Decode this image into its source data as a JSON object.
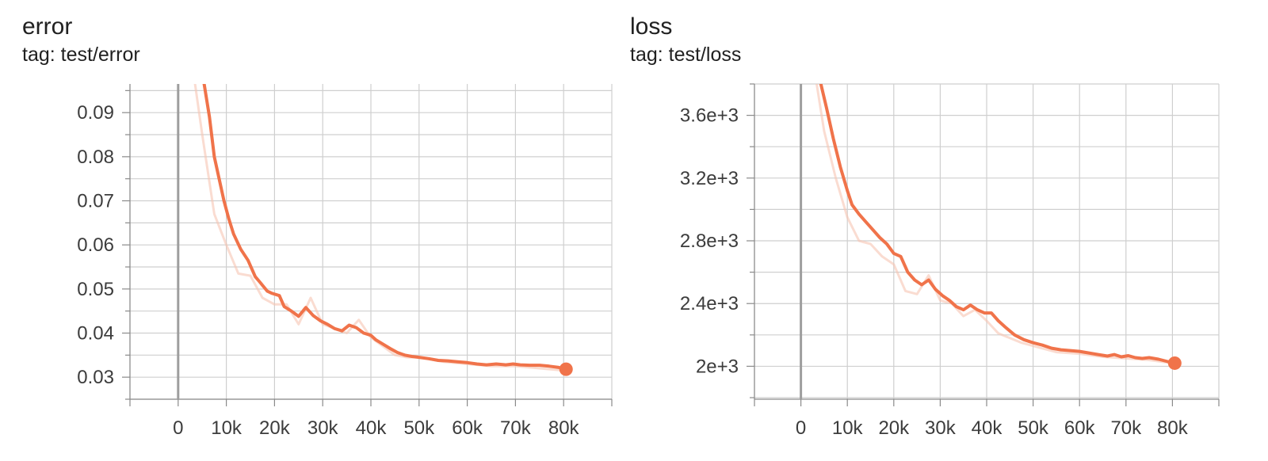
{
  "chart_data": [
    {
      "type": "line",
      "title": "error",
      "subtitle": "tag: test/error",
      "xlabel": "",
      "ylabel": "",
      "xlim": [
        -10000,
        90000
      ],
      "ylim": [
        0.025,
        0.0965
      ],
      "x_ticks": [
        0,
        10000,
        20000,
        30000,
        40000,
        50000,
        60000,
        70000,
        80000
      ],
      "x_tick_labels": [
        "0",
        "10k",
        "20k",
        "30k",
        "40k",
        "50k",
        "60k",
        "70k",
        "80k"
      ],
      "y_ticks": [
        0.03,
        0.04,
        0.05,
        0.06,
        0.07,
        0.08,
        0.09
      ],
      "y_tick_labels": [
        "0.03",
        "0.04",
        "0.05",
        "0.06",
        "0.07",
        "0.08",
        "0.09"
      ],
      "grid": true,
      "colors": {
        "smoothed": "#f0734a",
        "raw": "#f7c4b2",
        "grid": "#cfcfcf",
        "zero_line": "#9e9e9e"
      },
      "series": [
        {
          "role": "raw",
          "x": [
            3500,
            5000,
            7500,
            10000,
            12500,
            15000,
            17500,
            20000,
            22500,
            25000,
            27500,
            30000,
            32500,
            35000,
            37500,
            40000,
            42500,
            45000,
            47500,
            50000,
            55000,
            60000,
            65000,
            70000,
            75000,
            80000
          ],
          "y": [
            0.0965,
            0.085,
            0.067,
            0.06,
            0.0535,
            0.053,
            0.048,
            0.0465,
            0.0465,
            0.042,
            0.048,
            0.042,
            0.041,
            0.04,
            0.043,
            0.039,
            0.037,
            0.035,
            0.0345,
            0.0345,
            0.0335,
            0.033,
            0.0325,
            0.0325,
            0.032,
            0.0315
          ]
        },
        {
          "role": "smoothed",
          "x": [
            5400,
            6500,
            7500,
            8500,
            9500,
            10500,
            11500,
            13000,
            14500,
            16000,
            17000,
            18500,
            19500,
            21000,
            22000,
            23500,
            25000,
            26500,
            28000,
            29500,
            31000,
            32500,
            34000,
            35500,
            37000,
            38500,
            40000,
            41000,
            42500,
            44000,
            45500,
            47000,
            48500,
            50000,
            52000,
            54000,
            56000,
            58000,
            60000,
            62000,
            64000,
            66000,
            68000,
            69500,
            71000,
            73000,
            75000,
            77000,
            79000,
            80500
          ],
          "y": [
            0.0965,
            0.089,
            0.08,
            0.075,
            0.07,
            0.066,
            0.0625,
            0.059,
            0.0565,
            0.0528,
            0.0515,
            0.0495,
            0.049,
            0.0485,
            0.046,
            0.045,
            0.0438,
            0.0458,
            0.044,
            0.0428,
            0.042,
            0.041,
            0.0405,
            0.0418,
            0.0412,
            0.04,
            0.0395,
            0.0385,
            0.0375,
            0.0365,
            0.0356,
            0.035,
            0.0347,
            0.0345,
            0.0342,
            0.0338,
            0.0337,
            0.0335,
            0.0333,
            0.033,
            0.0328,
            0.033,
            0.0328,
            0.033,
            0.0328,
            0.0327,
            0.0327,
            0.0325,
            0.0322,
            0.0318
          ]
        }
      ],
      "last_point": {
        "x": 80500,
        "y": 0.0318
      }
    },
    {
      "type": "line",
      "title": "loss",
      "subtitle": "tag: test/loss",
      "xlabel": "",
      "ylabel": "",
      "xlim": [
        -10000,
        90000
      ],
      "ylim": [
        1790,
        3800
      ],
      "x_ticks": [
        0,
        10000,
        20000,
        30000,
        40000,
        50000,
        60000,
        70000,
        80000
      ],
      "x_tick_labels": [
        "0",
        "10k",
        "20k",
        "30k",
        "40k",
        "50k",
        "60k",
        "70k",
        "80k"
      ],
      "y_ticks": [
        2000,
        2400,
        2800,
        3200,
        3600
      ],
      "y_tick_labels": [
        "2e+3",
        "2.4e+3",
        "2.8e+3",
        "3.2e+3",
        "3.6e+3"
      ],
      "grid": true,
      "colors": {
        "smoothed": "#f0734a",
        "raw": "#f7c4b2",
        "grid": "#cfcfcf",
        "zero_line": "#9e9e9e"
      },
      "series": [
        {
          "role": "raw",
          "x": [
            3400,
            5000,
            7500,
            10000,
            12500,
            15000,
            17500,
            20000,
            22500,
            25000,
            27500,
            30000,
            32500,
            35000,
            37500,
            40000,
            42500,
            45000,
            47500,
            50000,
            55000,
            60000,
            65000,
            70000,
            75000,
            80000
          ],
          "y": [
            3800,
            3500,
            3200,
            2950,
            2800,
            2780,
            2700,
            2650,
            2480,
            2460,
            2580,
            2420,
            2400,
            2320,
            2360,
            2290,
            2210,
            2180,
            2150,
            2130,
            2090,
            2080,
            2060,
            2050,
            2040,
            2020
          ]
        },
        {
          "role": "smoothed",
          "x": [
            4300,
            5500,
            7000,
            8500,
            10000,
            11000,
            12500,
            14000,
            15500,
            17000,
            18500,
            20000,
            21500,
            23000,
            24500,
            26000,
            27500,
            29000,
            30500,
            32000,
            33500,
            35000,
            36500,
            38000,
            39500,
            41000,
            42500,
            44000,
            46000,
            48000,
            50000,
            52000,
            54000,
            56000,
            58000,
            60000,
            62000,
            64000,
            66000,
            67500,
            69000,
            70500,
            72000,
            73500,
            75000,
            77000,
            79000,
            80500
          ],
          "y": [
            3800,
            3650,
            3450,
            3270,
            3120,
            3030,
            2970,
            2920,
            2870,
            2820,
            2780,
            2720,
            2700,
            2600,
            2550,
            2520,
            2550,
            2490,
            2450,
            2420,
            2380,
            2360,
            2390,
            2360,
            2340,
            2340,
            2290,
            2250,
            2200,
            2170,
            2150,
            2135,
            2115,
            2105,
            2100,
            2095,
            2085,
            2075,
            2065,
            2075,
            2060,
            2068,
            2055,
            2050,
            2055,
            2045,
            2030,
            2020
          ]
        }
      ],
      "last_point": {
        "x": 80500,
        "y": 2020
      }
    }
  ]
}
